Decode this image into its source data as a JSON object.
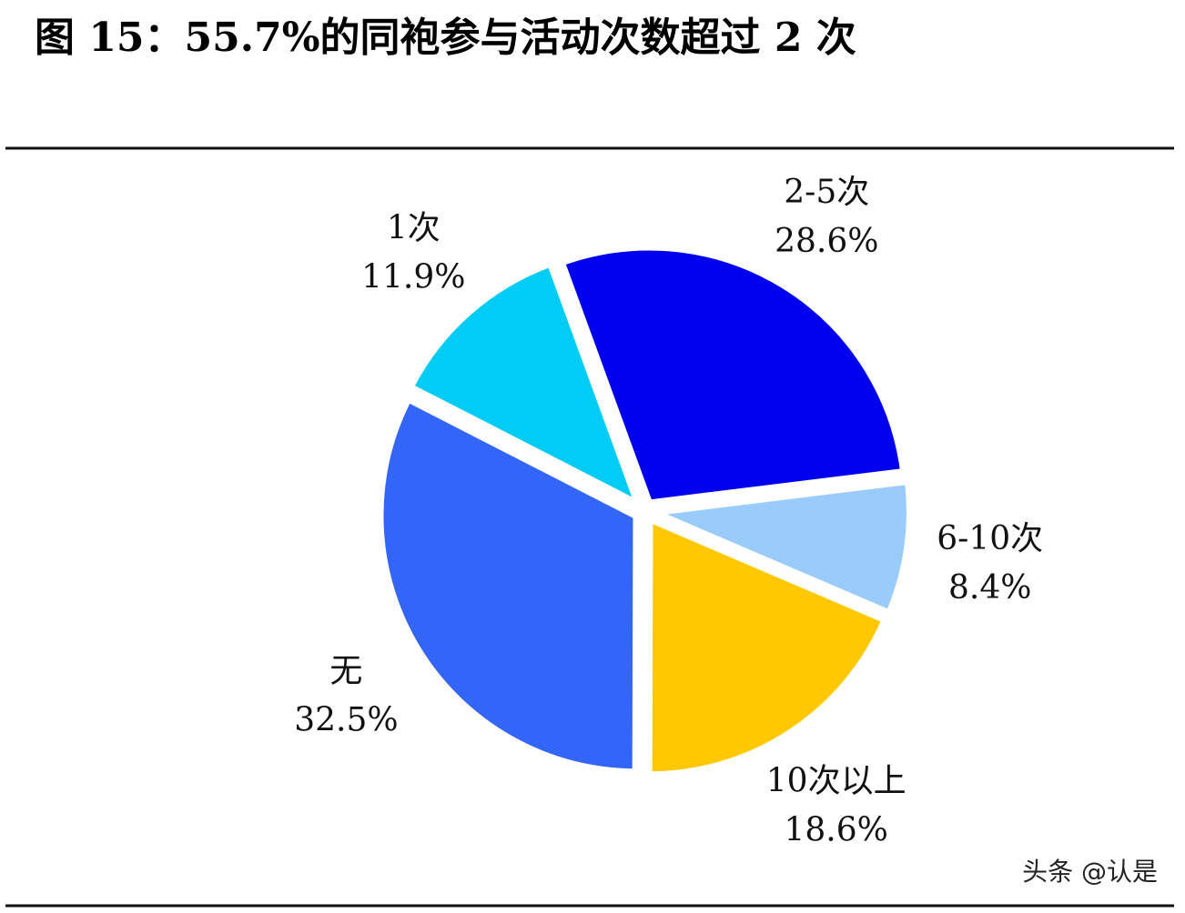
{
  "chart_data": {
    "type": "pie",
    "title": "图 15：55.7%的同袍参与活动次数超过 2 次",
    "categories": [
      "2-5次",
      "6-10次",
      "10次以上",
      "无",
      "1次"
    ],
    "values": [
      28.6,
      8.4,
      18.6,
      32.5,
      11.9
    ],
    "value_labels": [
      "28.6%",
      "8.4%",
      "18.6%",
      "32.5%",
      "11.9%"
    ],
    "colors": [
      "#0000ee",
      "#99ccfa",
      "#ffc800",
      "#3366f8",
      "#00ccf6"
    ],
    "watermark": "头条 @认是"
  }
}
